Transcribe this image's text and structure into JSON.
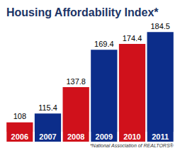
{
  "chart_data": {
    "type": "bar",
    "title": "Housing Affordability Index*",
    "annotations": [
      "*National Association of REALTORS®"
    ],
    "categories": [
      "2006",
      "2007",
      "2008",
      "2009",
      "2010",
      "2011"
    ],
    "values": [
      108,
      115.4,
      137.8,
      169.4,
      174.4,
      184.5
    ],
    "colors": [
      "#d0111b",
      "#0c2d8a",
      "#d0111b",
      "#0c2d8a",
      "#d0111b",
      "#0c2d8a"
    ],
    "ylim": [
      100,
      190
    ],
    "yticks": [
      100,
      190
    ],
    "grid": false,
    "data_labels": true,
    "tick_labels": "x"
  }
}
